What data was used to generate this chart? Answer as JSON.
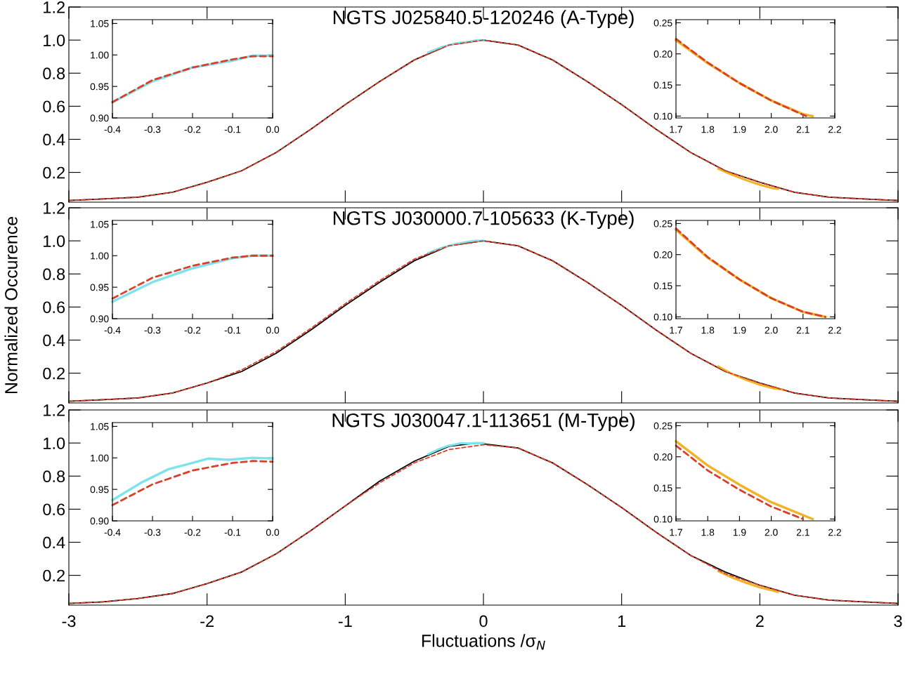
{
  "chart_data": [
    {
      "type": "line",
      "title": "NGTS J025840.5-120246 (A-Type)",
      "xlim": [
        -3,
        3
      ],
      "xticks": [
        -3,
        -2,
        -1,
        0,
        1,
        2,
        3
      ],
      "ylim": [
        0.02,
        1.2
      ],
      "yticks": [
        0.2,
        0.4,
        0.6,
        0.8,
        {
          "value": 1.0,
          "label": "1.0"
        },
        1.2
      ],
      "tick_labels": "y",
      "grid": false,
      "series": [
        {
          "color": "#000000",
          "line_style": "solid",
          "x": [
            -3,
            -2.75,
            -2.5,
            -2.25,
            -2,
            -1.75,
            -1.5,
            -1.25,
            -1,
            -0.75,
            -0.5,
            -0.25,
            0,
            0.25,
            0.5,
            0.75,
            1,
            1.25,
            1.5,
            1.75,
            2,
            2.25,
            2.5,
            2.75,
            3
          ],
          "values": [
            0.03,
            0.04,
            0.05,
            0.08,
            0.14,
            0.21,
            0.32,
            0.46,
            0.61,
            0.75,
            0.88,
            0.97,
            1.0,
            0.97,
            0.88,
            0.75,
            0.61,
            0.46,
            0.32,
            0.21,
            0.14,
            0.08,
            0.05,
            0.04,
            0.03
          ]
        },
        {
          "color": "#d9402a",
          "line_style": "dashed",
          "x": [
            -3,
            -2.75,
            -2.5,
            -2.25,
            -2,
            -1.75,
            -1.5,
            -1.25,
            -1,
            -0.75,
            -0.5,
            -0.25,
            0,
            0.25,
            0.5,
            0.75,
            1,
            1.25,
            1.5,
            1.75,
            2,
            2.25,
            2.5,
            2.75,
            3
          ],
          "values": [
            0.03,
            0.04,
            0.05,
            0.08,
            0.14,
            0.21,
            0.32,
            0.46,
            0.61,
            0.75,
            0.88,
            0.97,
            1.0,
            0.97,
            0.88,
            0.75,
            0.61,
            0.46,
            0.32,
            0.21,
            0.14,
            0.08,
            0.05,
            0.04,
            0.03
          ]
        },
        {
          "color": "#7fe3ee",
          "line_style": "solid",
          "x": [
            -0.4,
            -0.3,
            -0.2,
            -0.1,
            -0.05,
            0
          ],
          "values": [
            0.925,
            0.958,
            0.98,
            0.991,
            0.999,
            0.999
          ]
        },
        {
          "color": "#f0b429",
          "line_style": "solid",
          "x": [
            1.7,
            1.8,
            1.9,
            2.0,
            2.1,
            2.13
          ],
          "values": [
            0.222,
            0.185,
            0.153,
            0.125,
            0.103,
            0.1
          ]
        }
      ]
    },
    {
      "type": "line",
      "xlim": [
        -0.4,
        0.0
      ],
      "xticks": [
        {
          "value": -0.4,
          "label": "-0.4"
        },
        {
          "value": -0.3,
          "label": "-0.3"
        },
        {
          "value": -0.2,
          "label": "-0.2"
        },
        {
          "value": -0.1,
          "label": "-0.1"
        },
        {
          "value": 0.0,
          "label": "0.0"
        }
      ],
      "ylim": [
        0.9,
        1.056
      ],
      "yticks": [
        {
          "value": 0.9,
          "label": "0.90"
        },
        {
          "value": 0.95,
          "label": "0.95"
        },
        {
          "value": 1.0,
          "label": "1.00"
        },
        {
          "value": 1.05,
          "label": "1.05"
        }
      ],
      "grid": false,
      "series": [
        {
          "color": "#7fe3ee",
          "line_style": "solid",
          "x": [
            -0.4,
            -0.3,
            -0.2,
            -0.1,
            -0.05,
            0
          ],
          "values": [
            0.925,
            0.958,
            0.98,
            0.991,
            0.999,
            0.999
          ]
        },
        {
          "color": "#d9402a",
          "line_style": "dashed",
          "x": [
            -0.4,
            -0.3,
            -0.2,
            -0.1,
            -0.05,
            0
          ],
          "values": [
            0.925,
            0.96,
            0.98,
            0.993,
            0.998,
            0.998
          ]
        }
      ]
    },
    {
      "type": "line",
      "xlim": [
        1.7,
        2.2
      ],
      "xticks": [
        {
          "value": 1.7,
          "label": "1.7"
        },
        {
          "value": 1.8,
          "label": "1.8"
        },
        {
          "value": 1.9,
          "label": "1.9"
        },
        {
          "value": 2.0,
          "label": "2.0"
        },
        {
          "value": 2.1,
          "label": "2.1"
        },
        {
          "value": 2.2,
          "label": "2.2"
        }
      ],
      "ylim": [
        0.097,
        0.255
      ],
      "yticks": [
        {
          "value": 0.1,
          "label": "0.10"
        },
        {
          "value": 0.15,
          "label": "0.15"
        },
        {
          "value": 0.2,
          "label": "0.20"
        },
        {
          "value": 0.25,
          "label": "0.25"
        }
      ],
      "grid": false,
      "series": [
        {
          "color": "#f0b429",
          "line_style": "solid",
          "x": [
            1.7,
            1.8,
            1.9,
            2.0,
            2.1,
            2.13
          ],
          "values": [
            0.222,
            0.185,
            0.153,
            0.125,
            0.103,
            0.1
          ]
        },
        {
          "color": "#d9402a",
          "line_style": "dashed",
          "x": [
            1.7,
            1.8,
            1.9,
            2.0,
            2.1,
            2.11
          ],
          "values": [
            0.224,
            0.186,
            0.153,
            0.125,
            0.102,
            0.1
          ]
        }
      ]
    },
    {
      "type": "line",
      "title": "NGTS J030000.7-105633 (K-Type)",
      "ylabel": "Normalized Occurence",
      "xlim": [
        -3,
        3
      ],
      "xticks": [
        -3,
        -2,
        -1,
        0,
        1,
        2,
        3
      ],
      "ylim": [
        0.02,
        1.2
      ],
      "yticks": [
        0.2,
        0.4,
        0.6,
        0.8,
        {
          "value": 1.0,
          "label": "1.0"
        },
        1.2
      ],
      "tick_labels": "y",
      "grid": false,
      "series": [
        {
          "color": "#000000",
          "line_style": "solid",
          "x": [
            -3,
            -2.75,
            -2.5,
            -2.25,
            -2,
            -1.75,
            -1.5,
            -1.25,
            -1,
            -0.75,
            -0.5,
            -0.25,
            0,
            0.25,
            0.5,
            0.75,
            1,
            1.25,
            1.5,
            1.75,
            2,
            2.25,
            2.5,
            2.75,
            3
          ],
          "values": [
            0.03,
            0.04,
            0.05,
            0.08,
            0.14,
            0.21,
            0.32,
            0.46,
            0.61,
            0.75,
            0.88,
            0.97,
            1.0,
            0.97,
            0.88,
            0.75,
            0.61,
            0.46,
            0.32,
            0.21,
            0.14,
            0.08,
            0.05,
            0.04,
            0.03
          ]
        },
        {
          "color": "#d9402a",
          "line_style": "dashed",
          "x": [
            -3,
            -2.75,
            -2.5,
            -2.25,
            -2,
            -1.75,
            -1.5,
            -1.25,
            -1,
            -0.75,
            -0.5,
            -0.25,
            0,
            0.25,
            0.5,
            0.75,
            1,
            1.25,
            1.5,
            1.75,
            2,
            2.25,
            2.5,
            2.75,
            3
          ],
          "values": [
            0.03,
            0.04,
            0.05,
            0.08,
            0.14,
            0.22,
            0.33,
            0.47,
            0.62,
            0.76,
            0.89,
            0.97,
            1.0,
            0.97,
            0.88,
            0.75,
            0.61,
            0.46,
            0.32,
            0.21,
            0.14,
            0.08,
            0.05,
            0.04,
            0.03
          ]
        },
        {
          "color": "#7fe3ee",
          "line_style": "solid",
          "x": [
            -0.4,
            -0.3,
            -0.2,
            -0.1,
            -0.05,
            0
          ],
          "values": [
            0.927,
            0.958,
            0.98,
            0.996,
            1.0,
            1.0
          ]
        },
        {
          "color": "#f0b429",
          "line_style": "solid",
          "x": [
            1.7,
            1.8,
            1.9,
            2.0,
            2.1,
            2.17
          ],
          "values": [
            0.24,
            0.195,
            0.16,
            0.13,
            0.108,
            0.1
          ]
        }
      ]
    },
    {
      "type": "line",
      "xlim": [
        -0.4,
        0.0
      ],
      "xticks": [
        {
          "value": -0.4,
          "label": "-0.4"
        },
        {
          "value": -0.3,
          "label": "-0.3"
        },
        {
          "value": -0.2,
          "label": "-0.2"
        },
        {
          "value": -0.1,
          "label": "-0.1"
        },
        {
          "value": 0.0,
          "label": "0.0"
        }
      ],
      "ylim": [
        0.9,
        1.056
      ],
      "yticks": [
        {
          "value": 0.9,
          "label": "0.90"
        },
        {
          "value": 0.95,
          "label": "0.95"
        },
        {
          "value": 1.0,
          "label": "1.00"
        },
        {
          "value": 1.05,
          "label": "1.05"
        }
      ],
      "grid": false,
      "series": [
        {
          "color": "#7fe3ee",
          "line_style": "solid",
          "x": [
            -0.4,
            -0.3,
            -0.2,
            -0.1,
            -0.05,
            0
          ],
          "values": [
            0.927,
            0.958,
            0.98,
            0.996,
            1.0,
            1.0
          ]
        },
        {
          "color": "#d9402a",
          "line_style": "dashed",
          "x": [
            -0.4,
            -0.3,
            -0.2,
            -0.1,
            -0.05,
            0
          ],
          "values": [
            0.932,
            0.965,
            0.984,
            0.997,
            1.0,
            1.0
          ]
        }
      ]
    },
    {
      "type": "line",
      "xlim": [
        1.7,
        2.2
      ],
      "xticks": [
        {
          "value": 1.7,
          "label": "1.7"
        },
        {
          "value": 1.8,
          "label": "1.8"
        },
        {
          "value": 1.9,
          "label": "1.9"
        },
        {
          "value": 2.0,
          "label": "2.0"
        },
        {
          "value": 2.1,
          "label": "2.1"
        },
        {
          "value": 2.2,
          "label": "2.2"
        }
      ],
      "ylim": [
        0.097,
        0.255
      ],
      "yticks": [
        {
          "value": 0.1,
          "label": "0.10"
        },
        {
          "value": 0.15,
          "label": "0.15"
        },
        {
          "value": 0.2,
          "label": "0.20"
        },
        {
          "value": 0.25,
          "label": "0.25"
        }
      ],
      "grid": false,
      "series": [
        {
          "color": "#f0b429",
          "line_style": "solid",
          "x": [
            1.7,
            1.8,
            1.9,
            2.0,
            2.1,
            2.17
          ],
          "values": [
            0.24,
            0.195,
            0.16,
            0.13,
            0.108,
            0.1
          ]
        },
        {
          "color": "#d9402a",
          "line_style": "dashed",
          "x": [
            1.7,
            1.8,
            1.9,
            2.0,
            2.1,
            2.17
          ],
          "values": [
            0.242,
            0.196,
            0.16,
            0.13,
            0.108,
            0.1
          ]
        }
      ]
    },
    {
      "type": "line",
      "title": "NGTS J030047.1-113651 (M-Type)",
      "xlabel": "Fluctuations /σ$_{N}$",
      "xlim": [
        -3,
        3
      ],
      "xticks": [
        -3,
        -2,
        -1,
        0,
        1,
        2,
        3
      ],
      "ylim": [
        0.02,
        1.2
      ],
      "yticks": [
        0.2,
        0.4,
        0.6,
        0.8,
        {
          "value": 1.0,
          "label": "1.0"
        },
        1.2
      ],
      "grid": false,
      "series": [
        {
          "color": "#000000",
          "line_style": "solid",
          "x": [
            -3,
            -2.75,
            -2.5,
            -2.25,
            -2,
            -1.75,
            -1.5,
            -1.25,
            -1,
            -0.75,
            -0.5,
            -0.25,
            -0.05,
            0.25,
            0.5,
            0.75,
            1,
            1.25,
            1.5,
            1.75,
            2,
            2.25,
            2.5,
            2.75,
            3
          ],
          "values": [
            0.03,
            0.04,
            0.06,
            0.09,
            0.15,
            0.22,
            0.33,
            0.47,
            0.62,
            0.77,
            0.89,
            0.98,
            1.0,
            0.97,
            0.88,
            0.75,
            0.61,
            0.46,
            0.32,
            0.22,
            0.14,
            0.08,
            0.05,
            0.04,
            0.03
          ]
        },
        {
          "color": "#d9402a",
          "line_style": "dashed",
          "x": [
            -3,
            -2.75,
            -2.5,
            -2.25,
            -2,
            -1.75,
            -1.5,
            -1.25,
            -1,
            -0.75,
            -0.5,
            -0.25,
            0,
            0.25,
            0.5,
            0.75,
            1,
            1.25,
            1.5,
            1.75,
            2,
            2.25,
            2.5,
            2.75,
            3
          ],
          "values": [
            0.03,
            0.04,
            0.06,
            0.09,
            0.15,
            0.22,
            0.33,
            0.47,
            0.62,
            0.76,
            0.88,
            0.96,
            0.99,
            0.97,
            0.88,
            0.75,
            0.61,
            0.46,
            0.32,
            0.21,
            0.14,
            0.08,
            0.05,
            0.04,
            0.03
          ]
        },
        {
          "color": "#7fe3ee",
          "line_style": "solid",
          "x": [
            -0.4,
            -0.33,
            -0.26,
            -0.2,
            -0.16,
            -0.11,
            -0.05,
            0
          ],
          "values": [
            0.933,
            0.96,
            0.982,
            0.992,
            0.999,
            0.997,
            1.0,
            0.999
          ]
        },
        {
          "color": "#f0b429",
          "line_style": "solid",
          "x": [
            1.7,
            1.8,
            1.9,
            2.0,
            2.13
          ],
          "values": [
            0.225,
            0.186,
            0.155,
            0.127,
            0.1
          ]
        }
      ]
    },
    {
      "type": "line",
      "xlim": [
        -0.4,
        0.0
      ],
      "xticks": [
        {
          "value": -0.4,
          "label": "-0.4"
        },
        {
          "value": -0.3,
          "label": "-0.3"
        },
        {
          "value": -0.2,
          "label": "-0.2"
        },
        {
          "value": -0.1,
          "label": "-0.1"
        },
        {
          "value": 0.0,
          "label": "0.0"
        }
      ],
      "ylim": [
        0.9,
        1.056
      ],
      "yticks": [
        {
          "value": 0.9,
          "label": "0.90"
        },
        {
          "value": 0.95,
          "label": "0.95"
        },
        {
          "value": 1.0,
          "label": "1.00"
        },
        {
          "value": 1.05,
          "label": "1.05"
        }
      ],
      "grid": false,
      "series": [
        {
          "color": "#7fe3ee",
          "line_style": "solid",
          "x": [
            -0.4,
            -0.33,
            -0.26,
            -0.2,
            -0.16,
            -0.11,
            -0.05,
            0
          ],
          "values": [
            0.933,
            0.96,
            0.982,
            0.992,
            0.999,
            0.997,
            1.0,
            0.999
          ]
        },
        {
          "color": "#d9402a",
          "line_style": "dashed",
          "x": [
            -0.4,
            -0.3,
            -0.2,
            -0.1,
            -0.05,
            0
          ],
          "values": [
            0.925,
            0.958,
            0.98,
            0.992,
            0.995,
            0.994
          ]
        }
      ]
    },
    {
      "type": "line",
      "xlim": [
        1.7,
        2.2
      ],
      "xticks": [
        {
          "value": 1.7,
          "label": "1.7"
        },
        {
          "value": 1.8,
          "label": "1.8"
        },
        {
          "value": 1.9,
          "label": "1.9"
        },
        {
          "value": 2.0,
          "label": "2.0"
        },
        {
          "value": 2.1,
          "label": "2.1"
        },
        {
          "value": 2.2,
          "label": "2.2"
        }
      ],
      "ylim": [
        0.097,
        0.255
      ],
      "yticks": [
        {
          "value": 0.1,
          "label": "0.10"
        },
        {
          "value": 0.15,
          "label": "0.15"
        },
        {
          "value": 0.2,
          "label": "0.20"
        },
        {
          "value": 0.25,
          "label": "0.25"
        }
      ],
      "grid": false,
      "series": [
        {
          "color": "#f0b429",
          "line_style": "solid",
          "x": [
            1.7,
            1.8,
            1.9,
            2.0,
            2.13
          ],
          "values": [
            0.225,
            0.186,
            0.155,
            0.127,
            0.1
          ]
        },
        {
          "color": "#d9402a",
          "line_style": "dashed",
          "x": [
            1.7,
            1.8,
            1.9,
            2.0,
            2.1
          ],
          "values": [
            0.218,
            0.178,
            0.147,
            0.12,
            0.1
          ]
        }
      ]
    }
  ]
}
